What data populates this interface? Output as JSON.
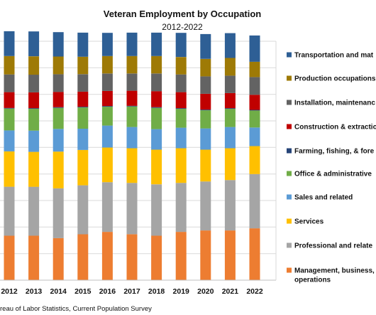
{
  "chart_data": {
    "type": "bar",
    "stacked": true,
    "title": "Veteran Employment by Occupation",
    "subtitle": "2012-2022",
    "source": "reau of Labor Statistics, Current Population Survey",
    "categories": [
      "2012",
      "2013",
      "2014",
      "2015",
      "2016",
      "2017",
      "2018",
      "2019",
      "2020",
      "2021",
      "2022"
    ],
    "ylim": [
      0,
      1
    ],
    "grid": true,
    "legend_position": "right",
    "series": [
      {
        "name": "Management, business, operations",
        "color": "#ED7D31",
        "values": [
          0.186,
          0.186,
          0.176,
          0.192,
          0.202,
          0.192,
          0.186,
          0.202,
          0.208,
          0.208,
          0.217
        ]
      },
      {
        "name": "Professional and relate",
        "color": "#A5A5A5",
        "values": [
          0.205,
          0.205,
          0.208,
          0.205,
          0.208,
          0.215,
          0.215,
          0.205,
          0.205,
          0.211,
          0.227
        ]
      },
      {
        "name": "Services",
        "color": "#FFC000",
        "values": [
          0.148,
          0.146,
          0.154,
          0.148,
          0.145,
          0.145,
          0.145,
          0.145,
          0.133,
          0.133,
          0.117
        ]
      },
      {
        "name": "Sales and related",
        "color": "#5B9BD5",
        "values": [
          0.088,
          0.089,
          0.095,
          0.089,
          0.092,
          0.089,
          0.086,
          0.086,
          0.089,
          0.089,
          0.078
        ]
      },
      {
        "name": "Office & administrative",
        "color": "#70AD47",
        "values": [
          0.091,
          0.091,
          0.088,
          0.089,
          0.079,
          0.086,
          0.089,
          0.079,
          0.076,
          0.076,
          0.071
        ]
      },
      {
        "name": "Farming, fishing, & fore",
        "color": "#264478",
        "values": [
          0.003,
          0.003,
          0.003,
          0.003,
          0.003,
          0.003,
          0.003,
          0.003,
          0.003,
          0.003,
          0.003
        ]
      },
      {
        "name": "Construction & extractio",
        "color": "#C00000",
        "values": [
          0.066,
          0.066,
          0.064,
          0.063,
          0.063,
          0.063,
          0.067,
          0.067,
          0.066,
          0.063,
          0.063
        ]
      },
      {
        "name": "Installation, maintenanc",
        "color": "#636363",
        "values": [
          0.074,
          0.074,
          0.074,
          0.073,
          0.073,
          0.072,
          0.074,
          0.074,
          0.073,
          0.073,
          0.074
        ]
      },
      {
        "name": "Production occupations",
        "color": "#9E7A06",
        "values": [
          0.077,
          0.077,
          0.074,
          0.073,
          0.073,
          0.073,
          0.073,
          0.073,
          0.073,
          0.074,
          0.064
        ]
      },
      {
        "name": "Transportation and mat",
        "color": "#2E5F95",
        "values": [
          0.104,
          0.104,
          0.102,
          0.101,
          0.097,
          0.098,
          0.098,
          0.101,
          0.104,
          0.104,
          0.11
        ]
      }
    ]
  }
}
